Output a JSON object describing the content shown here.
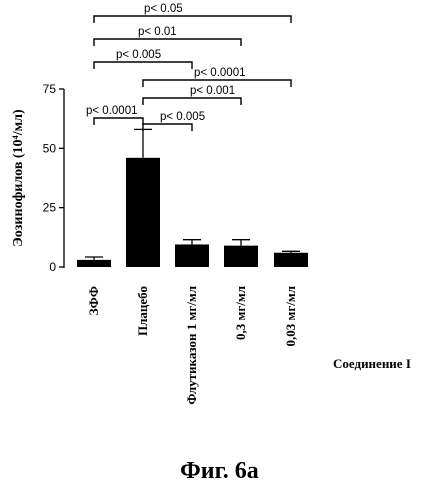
{
  "caption": "Фиг. 6а",
  "chart_data": {
    "type": "bar",
    "ylabel": "Эозинофилов (10⁴/мл)",
    "ylim": [
      0,
      75
    ],
    "yticks": [
      0,
      25,
      50,
      75
    ],
    "grid": false,
    "group_label": "Соединение I",
    "categories": [
      "ЗФФ",
      "Плацебо",
      "Флутиказон 1 мг/мл",
      "0,3 мг/мл",
      "0,03 мг/мл"
    ],
    "values": [
      3,
      46,
      9.5,
      9,
      6
    ],
    "errors": [
      1.2,
      12,
      2,
      2.5,
      0.6
    ],
    "comparisons": [
      {
        "from": 0,
        "to": 4,
        "label": "p< 0.05",
        "level": 1
      },
      {
        "from": 0,
        "to": 3,
        "label": "p< 0.01",
        "level": 2
      },
      {
        "from": 0,
        "to": 2,
        "label": "p< 0.005",
        "level": 3
      },
      {
        "from": 1,
        "to": 4,
        "label": "p< 0.0001",
        "level": 4
      },
      {
        "from": 1,
        "to": 3,
        "label": "p< 0.001",
        "level": 5
      },
      {
        "from": 0,
        "to": 1,
        "label": "p< 0.0001",
        "level": 6
      },
      {
        "from": 1,
        "to": 2,
        "label": "p< 0.005",
        "level": 7
      }
    ],
    "colors": {
      "bar": "#000000",
      "line": "#000000"
    }
  }
}
